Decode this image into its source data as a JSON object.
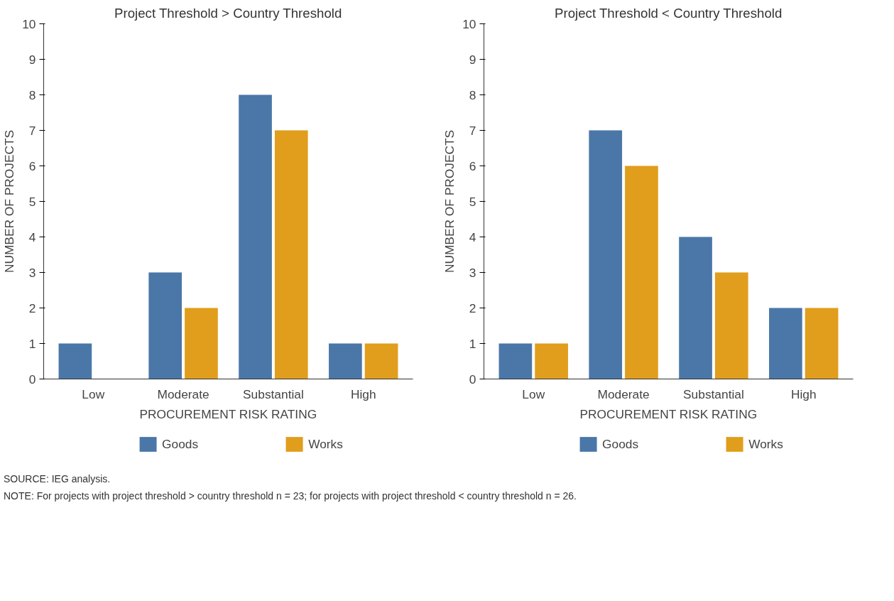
{
  "chart_data": [
    {
      "type": "bar",
      "title": "Project Threshold > Country Threshold",
      "xlabel": "PROCUREMENT RISK RATING",
      "ylabel": "NUMBER OF PROJECTS",
      "categories": [
        "Low",
        "Moderate",
        "Substantial",
        "High"
      ],
      "series": [
        {
          "name": "Goods",
          "color": "#4a77a8",
          "values": [
            1,
            3,
            8,
            1
          ]
        },
        {
          "name": "Works",
          "color": "#e19d1c",
          "values": [
            0,
            2,
            7,
            1
          ]
        }
      ],
      "ylim": [
        0,
        10
      ],
      "yticks": [
        0,
        1,
        2,
        3,
        4,
        5,
        6,
        7,
        8,
        9,
        10
      ],
      "grid": false,
      "legend": "bottom"
    },
    {
      "type": "bar",
      "title": "Project Threshold < Country Threshold",
      "xlabel": "PROCUREMENT RISK RATING",
      "ylabel": "NUMBER OF PROJECTS",
      "categories": [
        "Low",
        "Moderate",
        "Substantial",
        "High"
      ],
      "series": [
        {
          "name": "Goods",
          "color": "#4a77a8",
          "values": [
            1,
            7,
            4,
            2
          ]
        },
        {
          "name": "Works",
          "color": "#e19d1c",
          "values": [
            1,
            6,
            3,
            2
          ]
        }
      ],
      "ylim": [
        0,
        10
      ],
      "yticks": [
        0,
        1,
        2,
        3,
        4,
        5,
        6,
        7,
        8,
        9,
        10
      ],
      "grid": false,
      "legend": "bottom",
      "annotations": [
        "SOURCE: IEG analysis.",
        "NOTE: For projects with project threshold > country threshold n = 23; for projects with project threshold < country threshold n = 26."
      ]
    }
  ]
}
